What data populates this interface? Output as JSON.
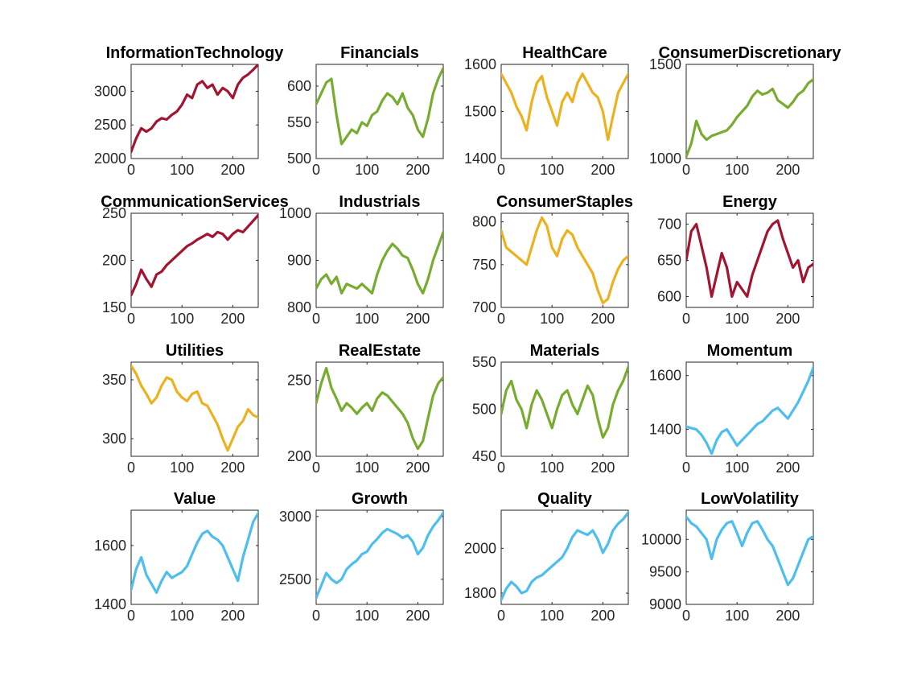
{
  "chart_data": [
    {
      "type": "line",
      "title": "InformationTechnology",
      "color": "#A2142F",
      "xlim": [
        0,
        250
      ],
      "ylim": [
        2000,
        3400
      ],
      "xticks": [
        0,
        100,
        200
      ],
      "yticks": [
        2000,
        2500,
        3000
      ],
      "x": [
        0,
        10,
        20,
        30,
        40,
        50,
        60,
        70,
        80,
        90,
        100,
        110,
        120,
        130,
        140,
        150,
        160,
        170,
        180,
        190,
        200,
        210,
        220,
        230,
        240,
        250
      ],
      "y": [
        2100,
        2300,
        2450,
        2400,
        2450,
        2550,
        2600,
        2580,
        2650,
        2700,
        2800,
        2950,
        2900,
        3100,
        3150,
        3050,
        3100,
        2950,
        3050,
        3000,
        2900,
        3100,
        3200,
        3250,
        3320,
        3400
      ]
    },
    {
      "type": "line",
      "title": "Financials",
      "color": "#77AC30",
      "xlim": [
        0,
        250
      ],
      "ylim": [
        500,
        630
      ],
      "xticks": [
        0,
        100,
        200
      ],
      "yticks": [
        500,
        550,
        600
      ],
      "x": [
        0,
        10,
        20,
        30,
        40,
        50,
        60,
        70,
        80,
        90,
        100,
        110,
        120,
        130,
        140,
        150,
        160,
        170,
        180,
        190,
        200,
        210,
        220,
        230,
        240,
        250
      ],
      "y": [
        575,
        590,
        605,
        610,
        560,
        520,
        530,
        540,
        535,
        550,
        545,
        560,
        565,
        580,
        590,
        585,
        575,
        590,
        570,
        560,
        540,
        530,
        555,
        590,
        610,
        625
      ]
    },
    {
      "type": "line",
      "title": "HealthCare",
      "color": "#EDB120",
      "xlim": [
        0,
        250
      ],
      "ylim": [
        1400,
        1600
      ],
      "xticks": [
        0,
        100,
        200
      ],
      "yticks": [
        1400,
        1500,
        1600
      ],
      "x": [
        0,
        10,
        20,
        30,
        40,
        50,
        60,
        70,
        80,
        90,
        100,
        110,
        120,
        130,
        140,
        150,
        160,
        170,
        180,
        190,
        200,
        210,
        220,
        230,
        240,
        250
      ],
      "y": [
        1580,
        1560,
        1540,
        1510,
        1490,
        1460,
        1520,
        1560,
        1575,
        1530,
        1500,
        1470,
        1520,
        1540,
        1520,
        1560,
        1580,
        1560,
        1540,
        1530,
        1500,
        1440,
        1490,
        1540,
        1560,
        1580
      ]
    },
    {
      "type": "line",
      "title": "ConsumerDiscretionary",
      "color": "#77AC30",
      "xlim": [
        0,
        250
      ],
      "ylim": [
        1000,
        1500
      ],
      "xticks": [
        0,
        100,
        200
      ],
      "yticks": [
        1000,
        1500
      ],
      "x": [
        0,
        10,
        20,
        30,
        40,
        50,
        60,
        70,
        80,
        90,
        100,
        110,
        120,
        130,
        140,
        150,
        160,
        170,
        180,
        190,
        200,
        210,
        220,
        230,
        240,
        250
      ],
      "y": [
        1010,
        1080,
        1200,
        1130,
        1100,
        1120,
        1130,
        1140,
        1150,
        1180,
        1220,
        1250,
        1280,
        1330,
        1360,
        1340,
        1350,
        1370,
        1310,
        1290,
        1270,
        1300,
        1340,
        1360,
        1400,
        1420
      ]
    },
    {
      "type": "line",
      "title": "CommunicationServices",
      "color": "#A2142F",
      "xlim": [
        0,
        250
      ],
      "ylim": [
        150,
        250
      ],
      "xticks": [
        0,
        100,
        200
      ],
      "yticks": [
        150,
        200,
        250
      ],
      "x": [
        0,
        10,
        20,
        30,
        40,
        50,
        60,
        70,
        80,
        90,
        100,
        110,
        120,
        130,
        140,
        150,
        160,
        170,
        180,
        190,
        200,
        210,
        220,
        230,
        240,
        250
      ],
      "y": [
        163,
        175,
        190,
        180,
        172,
        185,
        188,
        195,
        200,
        205,
        210,
        215,
        218,
        222,
        225,
        228,
        225,
        230,
        228,
        222,
        228,
        232,
        230,
        236,
        242,
        248
      ]
    },
    {
      "type": "line",
      "title": "Industrials",
      "color": "#77AC30",
      "xlim": [
        0,
        250
      ],
      "ylim": [
        800,
        1000
      ],
      "xticks": [
        0,
        100,
        200
      ],
      "yticks": [
        800,
        900,
        1000
      ],
      "x": [
        0,
        10,
        20,
        30,
        40,
        50,
        60,
        70,
        80,
        90,
        100,
        110,
        120,
        130,
        140,
        150,
        160,
        170,
        180,
        190,
        200,
        210,
        220,
        230,
        240,
        250
      ],
      "y": [
        840,
        860,
        870,
        850,
        865,
        830,
        850,
        845,
        840,
        850,
        840,
        830,
        870,
        900,
        920,
        935,
        925,
        910,
        905,
        880,
        850,
        830,
        860,
        900,
        930,
        960
      ]
    },
    {
      "type": "line",
      "title": "ConsumerStaples",
      "color": "#EDB120",
      "xlim": [
        0,
        250
      ],
      "ylim": [
        700,
        810
      ],
      "xticks": [
        0,
        100,
        200
      ],
      "yticks": [
        700,
        750,
        800
      ],
      "x": [
        0,
        10,
        20,
        30,
        40,
        50,
        60,
        70,
        80,
        90,
        100,
        110,
        120,
        130,
        140,
        150,
        160,
        170,
        180,
        190,
        200,
        210,
        220,
        230,
        240,
        250
      ],
      "y": [
        790,
        770,
        765,
        760,
        755,
        750,
        770,
        790,
        805,
        795,
        770,
        760,
        780,
        790,
        785,
        770,
        760,
        750,
        740,
        720,
        705,
        710,
        730,
        745,
        755,
        760
      ]
    },
    {
      "type": "line",
      "title": "Energy",
      "color": "#A2142F",
      "xlim": [
        0,
        250
      ],
      "ylim": [
        585,
        715
      ],
      "xticks": [
        0,
        100,
        200
      ],
      "yticks": [
        600,
        650,
        700
      ],
      "x": [
        0,
        10,
        20,
        30,
        40,
        50,
        60,
        70,
        80,
        90,
        100,
        110,
        120,
        130,
        140,
        150,
        160,
        170,
        180,
        190,
        200,
        210,
        220,
        230,
        240,
        250
      ],
      "y": [
        650,
        690,
        700,
        670,
        640,
        600,
        630,
        660,
        640,
        600,
        620,
        610,
        600,
        630,
        650,
        670,
        690,
        700,
        705,
        680,
        660,
        640,
        650,
        620,
        640,
        645
      ]
    },
    {
      "type": "line",
      "title": "Utilities",
      "color": "#EDB120",
      "xlim": [
        0,
        250
      ],
      "ylim": [
        285,
        365
      ],
      "xticks": [
        0,
        100,
        200
      ],
      "yticks": [
        300,
        350
      ],
      "x": [
        0,
        10,
        20,
        30,
        40,
        50,
        60,
        70,
        80,
        90,
        100,
        110,
        120,
        130,
        140,
        150,
        160,
        170,
        180,
        190,
        200,
        210,
        220,
        230,
        240,
        250
      ],
      "y": [
        362,
        355,
        345,
        338,
        330,
        335,
        345,
        352,
        350,
        340,
        335,
        332,
        338,
        340,
        330,
        328,
        320,
        312,
        300,
        290,
        300,
        310,
        315,
        325,
        320,
        318
      ]
    },
    {
      "type": "line",
      "title": "RealEstate",
      "color": "#77AC30",
      "xlim": [
        0,
        250
      ],
      "ylim": [
        200,
        262
      ],
      "xticks": [
        0,
        100,
        200
      ],
      "yticks": [
        200,
        250
      ],
      "x": [
        0,
        10,
        20,
        30,
        40,
        50,
        60,
        70,
        80,
        90,
        100,
        110,
        120,
        130,
        140,
        150,
        160,
        170,
        180,
        190,
        200,
        210,
        220,
        230,
        240,
        250
      ],
      "y": [
        235,
        248,
        258,
        245,
        238,
        230,
        235,
        232,
        228,
        232,
        235,
        230,
        238,
        242,
        240,
        236,
        232,
        228,
        222,
        212,
        205,
        210,
        225,
        240,
        248,
        252
      ]
    },
    {
      "type": "line",
      "title": "Materials",
      "color": "#77AC30",
      "xlim": [
        0,
        250
      ],
      "ylim": [
        450,
        550
      ],
      "xticks": [
        0,
        100,
        200
      ],
      "yticks": [
        450,
        500,
        550
      ],
      "x": [
        0,
        10,
        20,
        30,
        40,
        50,
        60,
        70,
        80,
        90,
        100,
        110,
        120,
        130,
        140,
        150,
        160,
        170,
        180,
        190,
        200,
        210,
        220,
        230,
        240,
        250
      ],
      "y": [
        495,
        520,
        530,
        510,
        500,
        480,
        505,
        520,
        510,
        495,
        480,
        500,
        515,
        520,
        505,
        495,
        510,
        525,
        515,
        490,
        470,
        480,
        505,
        520,
        530,
        545
      ]
    },
    {
      "type": "line",
      "title": "Momentum",
      "color": "#4DBEEE",
      "xlim": [
        0,
        250
      ],
      "ylim": [
        1300,
        1650
      ],
      "xticks": [
        0,
        100,
        200
      ],
      "yticks": [
        1400,
        1600
      ],
      "x": [
        0,
        10,
        20,
        30,
        40,
        50,
        60,
        70,
        80,
        90,
        100,
        110,
        120,
        130,
        140,
        150,
        160,
        170,
        180,
        190,
        200,
        210,
        220,
        230,
        240,
        250
      ],
      "y": [
        1410,
        1405,
        1400,
        1380,
        1350,
        1310,
        1360,
        1390,
        1400,
        1370,
        1340,
        1360,
        1380,
        1400,
        1420,
        1430,
        1450,
        1470,
        1480,
        1460,
        1440,
        1470,
        1500,
        1540,
        1580,
        1630
      ]
    },
    {
      "type": "line",
      "title": "Value",
      "color": "#4DBEEE",
      "xlim": [
        0,
        250
      ],
      "ylim": [
        1400,
        1720
      ],
      "xticks": [
        0,
        100,
        200
      ],
      "yticks": [
        1400,
        1600
      ],
      "x": [
        0,
        10,
        20,
        30,
        40,
        50,
        60,
        70,
        80,
        90,
        100,
        110,
        120,
        130,
        140,
        150,
        160,
        170,
        180,
        190,
        200,
        210,
        220,
        230,
        240,
        250
      ],
      "y": [
        1450,
        1520,
        1560,
        1500,
        1470,
        1440,
        1480,
        1510,
        1490,
        1500,
        1510,
        1530,
        1570,
        1610,
        1640,
        1650,
        1630,
        1620,
        1600,
        1560,
        1520,
        1480,
        1560,
        1620,
        1680,
        1710
      ]
    },
    {
      "type": "line",
      "title": "Growth",
      "color": "#4DBEEE",
      "xlim": [
        0,
        250
      ],
      "ylim": [
        2300,
        3050
      ],
      "xticks": [
        0,
        100,
        200
      ],
      "yticks": [
        2500,
        3000
      ],
      "x": [
        0,
        10,
        20,
        30,
        40,
        50,
        60,
        70,
        80,
        90,
        100,
        110,
        120,
        130,
        140,
        150,
        160,
        170,
        180,
        190,
        200,
        210,
        220,
        230,
        240,
        250
      ],
      "y": [
        2350,
        2450,
        2550,
        2500,
        2470,
        2500,
        2580,
        2620,
        2650,
        2700,
        2720,
        2780,
        2820,
        2870,
        2900,
        2880,
        2860,
        2830,
        2850,
        2800,
        2700,
        2750,
        2850,
        2920,
        2970,
        3030
      ]
    },
    {
      "type": "line",
      "title": "Quality",
      "color": "#4DBEEE",
      "xlim": [
        0,
        250
      ],
      "ylim": [
        1750,
        2170
      ],
      "xticks": [
        0,
        100,
        200
      ],
      "yticks": [
        1800,
        2000
      ],
      "x": [
        0,
        10,
        20,
        30,
        40,
        50,
        60,
        70,
        80,
        90,
        100,
        110,
        120,
        130,
        140,
        150,
        160,
        170,
        180,
        190,
        200,
        210,
        220,
        230,
        240,
        250
      ],
      "y": [
        1770,
        1820,
        1850,
        1830,
        1800,
        1810,
        1850,
        1870,
        1880,
        1900,
        1920,
        1940,
        1960,
        2000,
        2050,
        2080,
        2070,
        2060,
        2080,
        2040,
        1980,
        2020,
        2080,
        2110,
        2130,
        2160
      ]
    },
    {
      "type": "line",
      "title": "LowVolatility",
      "color": "#4DBEEE",
      "xlim": [
        0,
        250
      ],
      "ylim": [
        9000,
        10450
      ],
      "xticks": [
        0,
        100,
        200
      ],
      "yticks": [
        9000,
        9500,
        10000
      ],
      "x": [
        0,
        10,
        20,
        30,
        40,
        50,
        60,
        70,
        80,
        90,
        100,
        110,
        120,
        130,
        140,
        150,
        160,
        170,
        180,
        190,
        200,
        210,
        220,
        230,
        240,
        250
      ],
      "y": [
        10350,
        10250,
        10200,
        10100,
        10000,
        9700,
        10000,
        10150,
        10250,
        10280,
        10100,
        9900,
        10100,
        10250,
        10280,
        10150,
        10000,
        9900,
        9700,
        9500,
        9300,
        9400,
        9600,
        9800,
        10000,
        10050
      ]
    }
  ]
}
